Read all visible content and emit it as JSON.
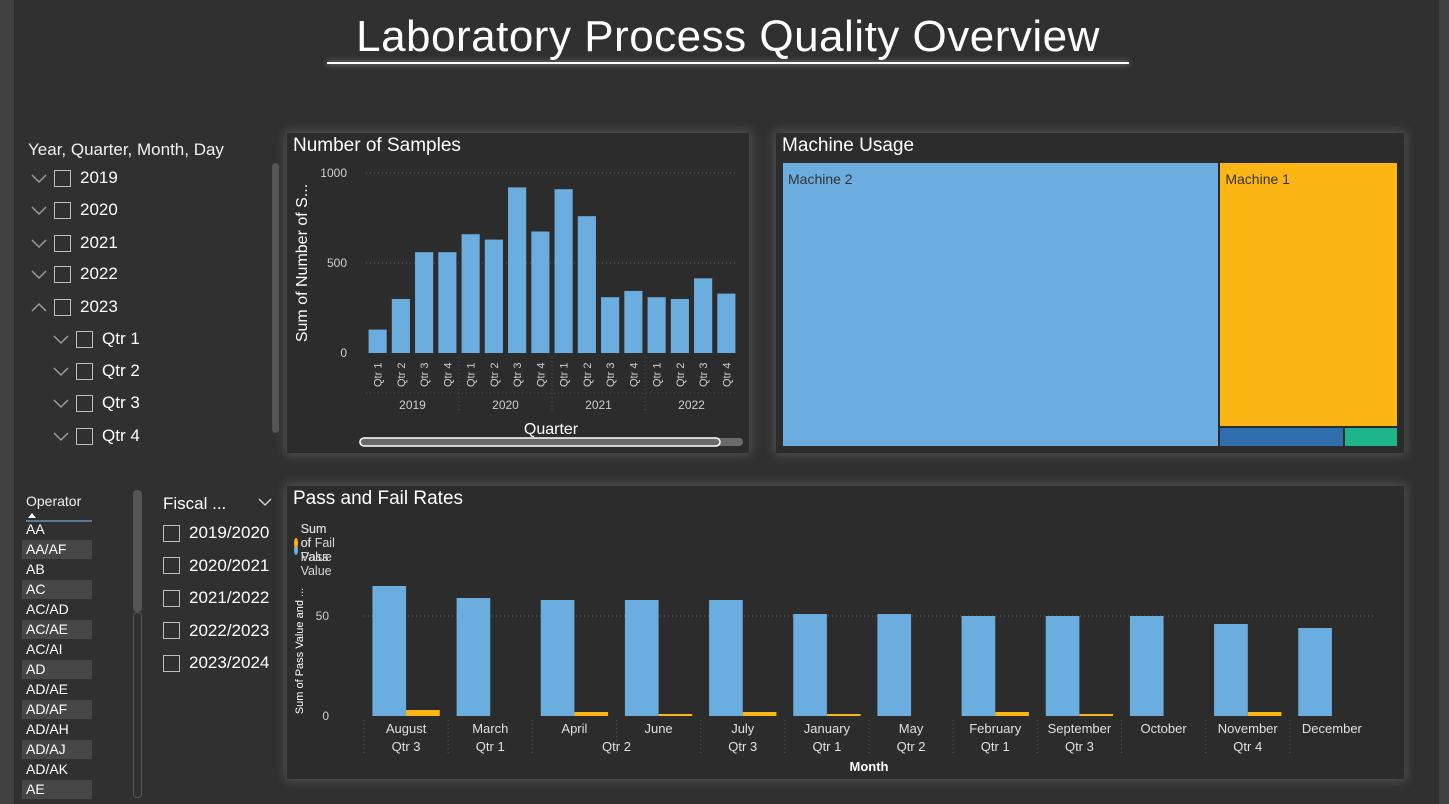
{
  "title": "Laboratory Process Quality Overview",
  "colors": {
    "blue": "#6caddf",
    "gold": "#fbb616",
    "darkblue": "#2f6fae",
    "green": "#1fb58a"
  },
  "date_slicer": {
    "title": "Year, Quarter, Month, Day",
    "years": [
      "2019",
      "2020",
      "2021",
      "2022",
      "2023"
    ],
    "quarters": [
      "Qtr 1",
      "Qtr 2",
      "Qtr 3",
      "Qtr 4"
    ]
  },
  "operator_slicer": {
    "header": "Operator",
    "items": [
      "AA",
      "AA/AF",
      "AB",
      "AC",
      "AC/AD",
      "AC/AE",
      "AC/AI",
      "AD",
      "AD/AE",
      "AD/AF",
      "AD/AH",
      "AD/AJ",
      "AD/AK",
      "AE"
    ]
  },
  "fiscal_slicer": {
    "title": "Fiscal ...",
    "items": [
      "2019/2020",
      "2020/2021",
      "2021/2022",
      "2022/2023",
      "2023/2024"
    ]
  },
  "samples_panel": {
    "title": "Number of Samples"
  },
  "machine_panel": {
    "title": "Machine Usage"
  },
  "pass_panel": {
    "title": "Pass and Fail Rates"
  },
  "chart_data": [
    {
      "type": "bar",
      "title": "Number of Samples",
      "xlabel": "Quarter",
      "ylabel": "Sum of Number of S...",
      "ylim": [
        0,
        1000
      ],
      "yticks": [
        0,
        500,
        1000
      ],
      "grid": true,
      "categories": [
        "Qtr 1",
        "Qtr 2",
        "Qtr 3",
        "Qtr 4",
        "Qtr 1",
        "Qtr 2",
        "Qtr 3",
        "Qtr 4",
        "Qtr 1",
        "Qtr 2",
        "Qtr 3",
        "Qtr 4",
        "Qtr 1",
        "Qtr 2",
        "Qtr 3",
        "Qtr 4"
      ],
      "groups": [
        "2019",
        "2020",
        "2021",
        "2022"
      ],
      "values": [
        130,
        300,
        560,
        560,
        660,
        630,
        920,
        675,
        910,
        760,
        310,
        345,
        310,
        300,
        415,
        330
      ]
    },
    {
      "type": "treemap",
      "title": "Machine Usage",
      "items": [
        {
          "name": "Machine 2",
          "value": 71,
          "color": "#6caddf"
        },
        {
          "name": "Machine 1",
          "value": 27,
          "color": "#fbb616"
        },
        {
          "name": "",
          "value": 1.4,
          "color": "#2f6fae"
        },
        {
          "name": "",
          "value": 0.6,
          "color": "#1fb58a"
        }
      ]
    },
    {
      "type": "bar",
      "title": "Pass and Fail Rates",
      "xlabel": "Month",
      "ylabel": "Sum of Pass Value and ...",
      "ylim": [
        0,
        75
      ],
      "yticks": [
        0,
        50
      ],
      "grid": true,
      "legend": "top-left",
      "categories": [
        "August",
        "March",
        "April",
        "June",
        "July",
        "January",
        "May",
        "February",
        "September",
        "October",
        "November",
        "December"
      ],
      "quarter_labels": [
        "Qtr 3",
        "Qtr 1",
        "Qtr 2",
        "",
        "Qtr 3",
        "Qtr 1",
        "Qtr 2",
        "Qtr 1",
        "Qtr 3",
        "",
        "Qtr 4",
        ""
      ],
      "series": [
        {
          "name": "Sum of Pass Value",
          "color": "#6caddf",
          "values": [
            65,
            59,
            58,
            58,
            58,
            51,
            51,
            50,
            50,
            50,
            46,
            44
          ]
        },
        {
          "name": "Sum of Fail Value",
          "color": "#fbb616",
          "values": [
            3,
            0,
            2,
            1,
            2,
            1,
            0,
            2,
            1,
            0,
            2,
            0
          ]
        }
      ]
    }
  ]
}
